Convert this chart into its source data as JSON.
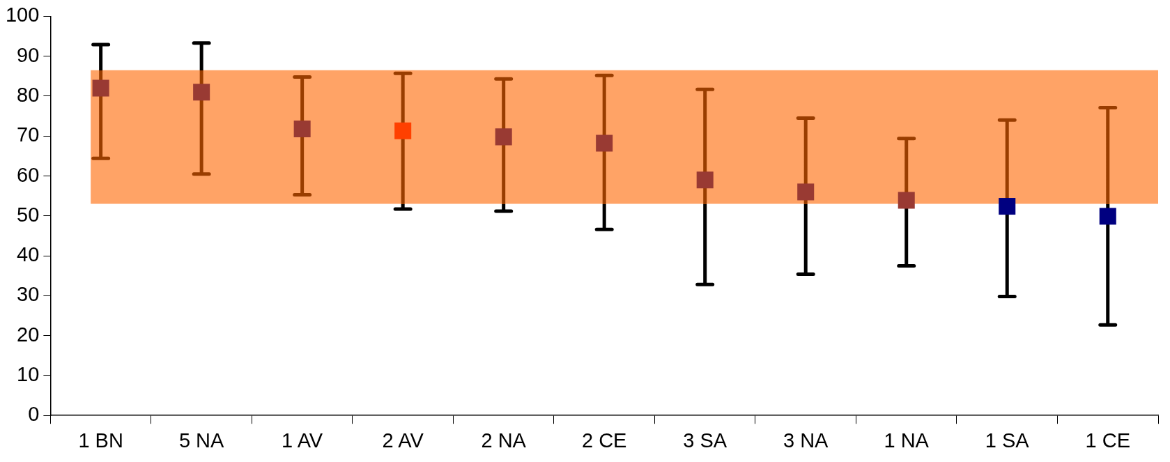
{
  "chart_data": {
    "type": "scatter",
    "categories": [
      "1 BN",
      "5 NA",
      "1 AV",
      "2 AV",
      "2 NA",
      "2 CE",
      "3 SA",
      "3 NA",
      "1 NA",
      "1 SA",
      "1 CE"
    ],
    "values": [
      82,
      81,
      71.8,
      71.3,
      69.8,
      68.2,
      59,
      56,
      53.9,
      52.4,
      49.9
    ],
    "colors": [
      "#993a33",
      "#993a33",
      "#993a33",
      "#ff4000",
      "#993a33",
      "#993a33",
      "#993a33",
      "#993a33",
      "#993a33",
      "#000080",
      "#000080"
    ],
    "errors": [
      [
        64.4,
        92.9
      ],
      [
        60.5,
        93.3
      ],
      [
        55.3,
        84.8
      ],
      [
        51.7,
        85.7
      ],
      [
        51.2,
        84.3
      ],
      [
        46.6,
        85.2
      ],
      [
        32.8,
        81.7
      ],
      [
        35.4,
        74.5
      ],
      [
        37.5,
        69.4
      ],
      [
        29.8,
        74
      ],
      [
        22.7,
        77.1
      ]
    ],
    "ylim": [
      0,
      100
    ],
    "yticks": [
      0,
      10,
      20,
      30,
      40,
      50,
      60,
      70,
      80,
      90,
      100
    ],
    "bands": [
      {
        "axis": "y",
        "from": 53,
        "to": 86.5,
        "color": "#ff6600"
      }
    ],
    "marker": "square",
    "grid": false,
    "legend": false
  }
}
